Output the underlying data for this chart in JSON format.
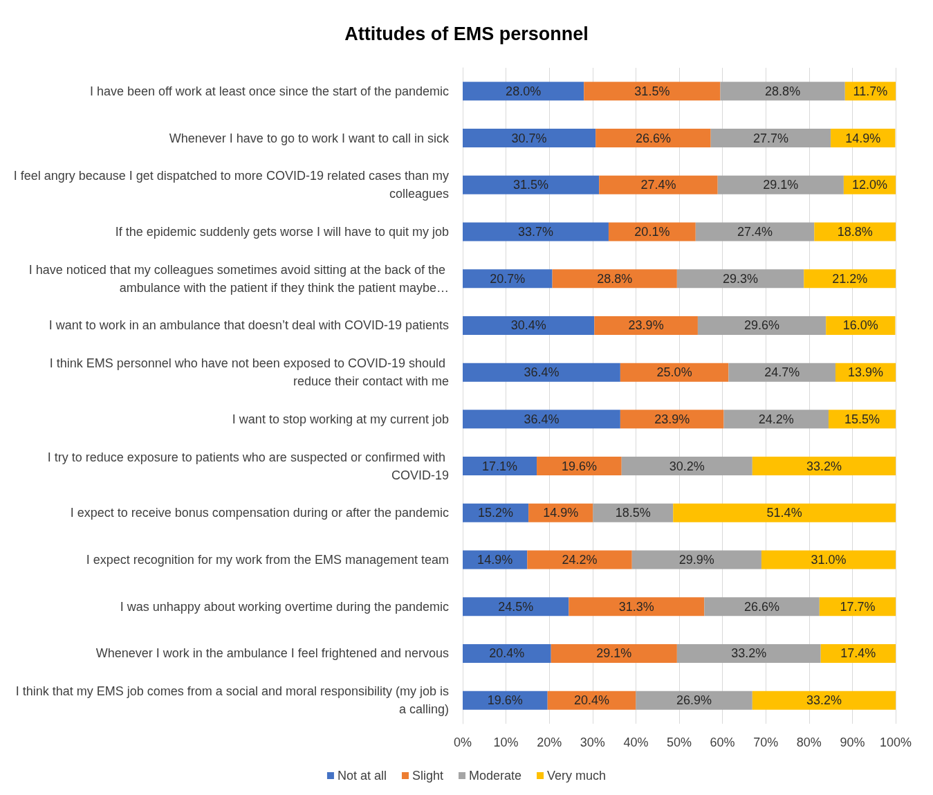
{
  "chart_data": {
    "type": "bar",
    "title": "Attitudes of EMS personnel",
    "orientation": "horizontal",
    "stacked": true,
    "grid": "x",
    "legend": "bottom",
    "categories": [
      "I have been off work at least once since the start of the pandemic",
      "Whenever I have to go to work I want to call in sick",
      "I feel angry because I get dispatched to more COVID-19 related cases than my colleagues",
      "If the epidemic suddenly gets worse I will have to quit my job",
      "I have noticed that my colleagues sometimes avoid sitting at the back of the ambulance with the patient if they think the patient maybe…",
      "I want to work in an ambulance that doesn’t deal with COVID-19 patients",
      "I think EMS personnel who have not been exposed to COVID-19 should reduce their contact with me",
      "I want to stop working at my current job",
      "I try to reduce exposure to patients who are suspected or confirmed with COVID-19",
      "I expect to receive bonus compensation during or after the pandemic",
      "I expect recognition for my work from the EMS management team",
      "I was unhappy about working overtime during the pandemic",
      "Whenever I work in the ambulance I feel frightened and nervous",
      "I think that my EMS job comes from a social and moral responsibility (my job is a calling)"
    ],
    "xlim": [
      0,
      100
    ],
    "xticks": [
      {
        "value": 0,
        "label": "0%"
      },
      {
        "value": 10,
        "label": "10%"
      },
      {
        "value": 20,
        "label": "20%"
      },
      {
        "value": 30,
        "label": "30%"
      },
      {
        "value": 40,
        "label": "40%"
      },
      {
        "value": 50,
        "label": "50%"
      },
      {
        "value": 60,
        "label": "60%"
      },
      {
        "value": 70,
        "label": "70%"
      },
      {
        "value": 80,
        "label": "80%"
      },
      {
        "value": 90,
        "label": "90%"
      },
      {
        "value": 100,
        "label": "100%"
      }
    ],
    "series": [
      {
        "name": "Not at all",
        "color": "#4472c4",
        "values": [
          28.0,
          30.7,
          31.5,
          33.7,
          20.7,
          30.4,
          36.4,
          36.4,
          17.1,
          15.2,
          14.9,
          24.5,
          20.4,
          19.6
        ],
        "value_labels": [
          "28.0%",
          "30.7%",
          "31.5%",
          "33.7%",
          "20.7%",
          "30.4%",
          "36.4%",
          "36.4%",
          "17.1%",
          "15.2%",
          "14.9%",
          "24.5%",
          "20.4%",
          "19.6%"
        ]
      },
      {
        "name": "Slight",
        "color": "#ed7d31",
        "values": [
          31.5,
          26.6,
          27.4,
          20.1,
          28.8,
          23.9,
          25.0,
          23.9,
          19.6,
          14.9,
          24.2,
          31.3,
          29.1,
          20.4
        ],
        "value_labels": [
          "31.5%",
          "26.6%",
          "27.4%",
          "20.1%",
          "28.8%",
          "23.9%",
          "25.0%",
          "23.9%",
          "19.6%",
          "14.9%",
          "24.2%",
          "31.3%",
          "29.1%",
          "20.4%"
        ]
      },
      {
        "name": "Moderate",
        "color": "#a5a5a5",
        "values": [
          28.8,
          27.7,
          29.1,
          27.4,
          29.3,
          29.6,
          24.7,
          24.2,
          30.2,
          18.5,
          29.9,
          26.6,
          33.2,
          26.9
        ],
        "value_labels": [
          "28.8%",
          "27.7%",
          "29.1%",
          "27.4%",
          "29.3%",
          "29.6%",
          "24.7%",
          "24.2%",
          "30.2%",
          "18.5%",
          "29.9%",
          "26.6%",
          "33.2%",
          "26.9%"
        ]
      },
      {
        "name": "Very much",
        "color": "#ffc000",
        "values": [
          11.7,
          14.9,
          12.0,
          18.8,
          21.2,
          16.0,
          13.9,
          15.5,
          33.2,
          51.4,
          31.0,
          17.7,
          17.4,
          33.2
        ],
        "value_labels": [
          "11.7%",
          "14.9%",
          "12.0%",
          "18.8%",
          "21.2%",
          "16.0%",
          "13.9%",
          "15.5%",
          "33.2%",
          "51.4%",
          "31.0%",
          "17.7%",
          "17.4%",
          "33.2%"
        ]
      }
    ]
  }
}
